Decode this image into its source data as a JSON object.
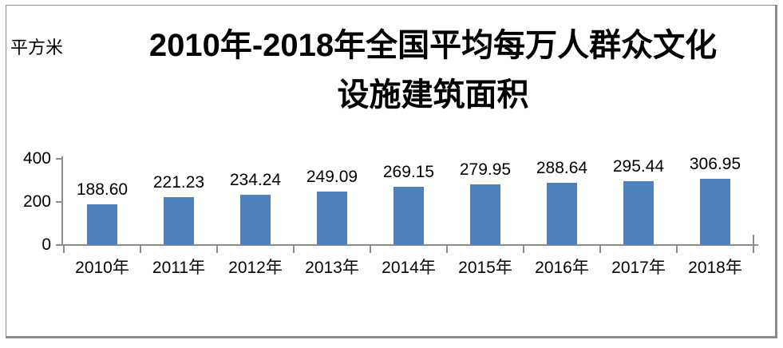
{
  "unit_label": "平方米",
  "title": {
    "line1": "2010年-2018年全国平均每万人群众文化",
    "line2": "设施建筑面积"
  },
  "chart_data": {
    "type": "bar",
    "title": "2010年-2018年全国平均每万人群众文化设施建筑面积",
    "ylabel": "平方米",
    "xlabel": "",
    "categories": [
      "2010年",
      "2011年",
      "2012年",
      "2013年",
      "2014年",
      "2015年",
      "2016年",
      "2017年",
      "2018年"
    ],
    "values": [
      188.6,
      221.23,
      234.24,
      249.09,
      269.15,
      279.95,
      288.64,
      295.44,
      306.95
    ],
    "data_labels": [
      "188.60",
      "221.23",
      "234.24",
      "249.09",
      "269.15",
      "279.95",
      "288.64",
      "295.44",
      "306.95"
    ],
    "y_ticks": [
      400,
      200,
      0
    ],
    "ylim": [
      0,
      400
    ],
    "grid": false,
    "legend": false,
    "bar_color": "#4F81BD",
    "axis_color": "#8C8C8C",
    "text_color": "#000000",
    "frame_color": "#8C8C8C"
  }
}
